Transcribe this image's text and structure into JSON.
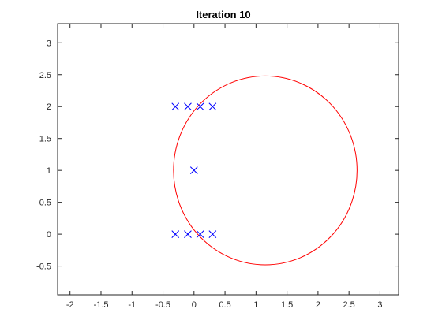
{
  "chart_data": {
    "type": "scatter",
    "title": "Iteration 10",
    "xlabel": "",
    "ylabel": "",
    "xlim": [
      -2.2,
      3.3
    ],
    "ylim": [
      -0.95,
      3.3
    ],
    "grid": false,
    "x_ticks": [
      -2,
      -1.5,
      -1,
      -0.5,
      0,
      0.5,
      1,
      1.5,
      2,
      2.5,
      3
    ],
    "x_tick_labels": [
      "-2",
      "-1.5",
      "-1",
      "-0.5",
      "0",
      "0.5",
      "1",
      "1.5",
      "2",
      "2.5",
      "3"
    ],
    "y_ticks": [
      -0.5,
      0,
      0.5,
      1,
      1.5,
      2,
      2.5,
      3
    ],
    "y_tick_labels": [
      "-0.5",
      "0",
      "0.5",
      "1",
      "1.5",
      "2",
      "2.5",
      "3"
    ],
    "series": [
      {
        "name": "points",
        "marker": "x",
        "color": "#0000ff",
        "x": [
          -0.3,
          -0.1,
          0.1,
          0.3,
          0.0,
          -0.3,
          -0.1,
          0.1,
          0.3
        ],
        "y": [
          2,
          2,
          2,
          2,
          1,
          0,
          0,
          0,
          0
        ]
      }
    ],
    "circle": {
      "name": "fitted-circle",
      "color": "#ff0000",
      "center": [
        1.15,
        1.0
      ],
      "radius": 1.48
    }
  }
}
